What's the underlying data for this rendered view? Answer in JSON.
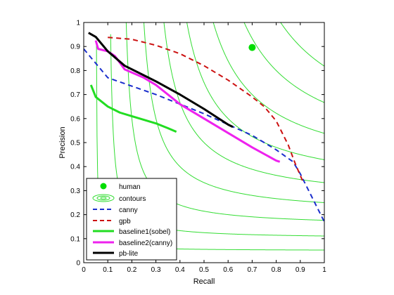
{
  "chart_data": {
    "type": "line",
    "title": "",
    "xlabel": "Recall",
    "ylabel": "Precision",
    "xlim": [
      0,
      1
    ],
    "ylim": [
      0,
      1
    ],
    "xticks": [
      "0",
      "0.1",
      "0.2",
      "0.3",
      "0.4",
      "0.5",
      "0.6",
      "0.7",
      "0.8",
      "0.9",
      "1"
    ],
    "yticks": [
      "0",
      "0.1",
      "0.2",
      "0.3",
      "0.4",
      "0.5",
      "0.6",
      "0.7",
      "0.8",
      "0.9",
      "1"
    ],
    "grid": false,
    "legend_position": "bottom-left",
    "contour_color": "#33dd33",
    "contour_levels": [
      0.1,
      0.2,
      0.3,
      0.4,
      0.5,
      0.6,
      0.7,
      0.8,
      0.9
    ],
    "human": {
      "name": "human",
      "x": 0.7,
      "y": 0.896,
      "color": "#00dd00"
    },
    "series": [
      {
        "name": "canny",
        "color": "#1a2ecc",
        "dash": "dashed",
        "x": [
          0.0,
          0.05,
          0.1,
          0.2,
          0.3,
          0.4,
          0.5,
          0.6,
          0.7,
          0.8,
          0.87,
          0.9,
          0.95,
          1.0
        ],
        "y": [
          0.89,
          0.83,
          0.77,
          0.735,
          0.7,
          0.66,
          0.62,
          0.575,
          0.53,
          0.47,
          0.42,
          0.37,
          0.27,
          0.17
        ]
      },
      {
        "name": "gpb",
        "color": "#cc1111",
        "dash": "dashed",
        "x": [
          0.1,
          0.2,
          0.3,
          0.4,
          0.5,
          0.6,
          0.7,
          0.75,
          0.8,
          0.85,
          0.88,
          0.91
        ],
        "y": [
          0.938,
          0.93,
          0.905,
          0.87,
          0.82,
          0.76,
          0.69,
          0.65,
          0.59,
          0.49,
          0.41,
          0.34
        ]
      },
      {
        "name": "baseline1(sobel)",
        "color": "#22dd22",
        "dash": "solid",
        "x": [
          0.03,
          0.05,
          0.1,
          0.15,
          0.2,
          0.25,
          0.3,
          0.35,
          0.385
        ],
        "y": [
          0.74,
          0.69,
          0.65,
          0.625,
          0.61,
          0.595,
          0.58,
          0.56,
          0.545
        ]
      },
      {
        "name": "baseline2(canny)",
        "color": "#ee22ee",
        "dash": "solid",
        "x": [
          0.05,
          0.06,
          0.1,
          0.13,
          0.17,
          0.25,
          0.3,
          0.4,
          0.5,
          0.6,
          0.7,
          0.8,
          0.815
        ],
        "y": [
          0.925,
          0.89,
          0.88,
          0.86,
          0.805,
          0.77,
          0.74,
          0.66,
          0.6,
          0.54,
          0.48,
          0.425,
          0.42
        ]
      },
      {
        "name": "pb-lite",
        "color": "#000000",
        "dash": "solid",
        "x": [
          0.02,
          0.05,
          0.1,
          0.17,
          0.25,
          0.3,
          0.4,
          0.5,
          0.6,
          0.62
        ],
        "y": [
          0.957,
          0.94,
          0.88,
          0.82,
          0.78,
          0.755,
          0.7,
          0.64,
          0.575,
          0.565
        ]
      }
    ],
    "legend": {
      "human": "human",
      "contours": "contours",
      "canny": "canny",
      "gpb": "gpb",
      "baseline1": "baseline1(sobel)",
      "baseline2": "baseline2(canny)",
      "pblite": "pb-lite"
    }
  }
}
